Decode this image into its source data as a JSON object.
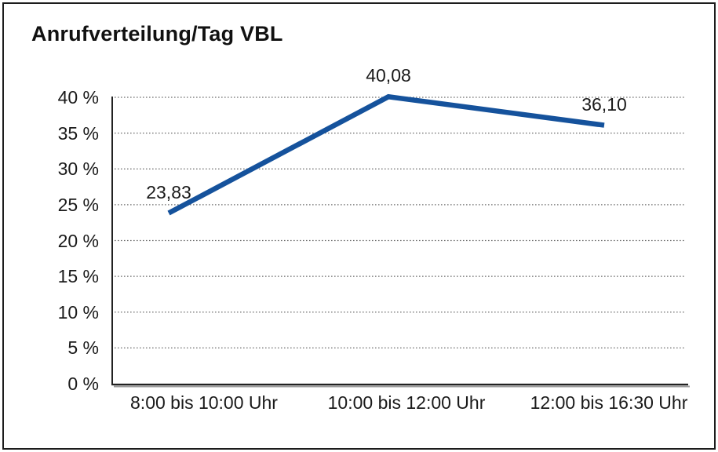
{
  "chart_data": {
    "type": "line",
    "title": "Anrufverteilung/Tag VBL",
    "categories": [
      "8:00 bis 10:00 Uhr",
      "10:00 bis 12:00 Uhr",
      "12:00 bis 16:30 Uhr"
    ],
    "values": [
      23.83,
      40.08,
      36.1
    ],
    "data_labels": [
      "23,83",
      "40,08",
      "36,10"
    ],
    "y_tick_labels": [
      "0 %",
      "5 %",
      "10 %",
      "15 %",
      "20 %",
      "25 %",
      "30 %",
      "35 %",
      "40 %"
    ],
    "y_tick_values": [
      0,
      5,
      10,
      15,
      20,
      25,
      30,
      35,
      40
    ],
    "ylim": [
      0,
      40
    ],
    "xlabel": "",
    "ylabel": "",
    "legend": "none",
    "grid": "horizontal-dotted",
    "line_color": "#15529c",
    "axis_color": "#222222",
    "axis_shadow_color": "#9a9a9a",
    "grid_color": "#6e6e6e",
    "text_color": "#1a1a1a"
  }
}
